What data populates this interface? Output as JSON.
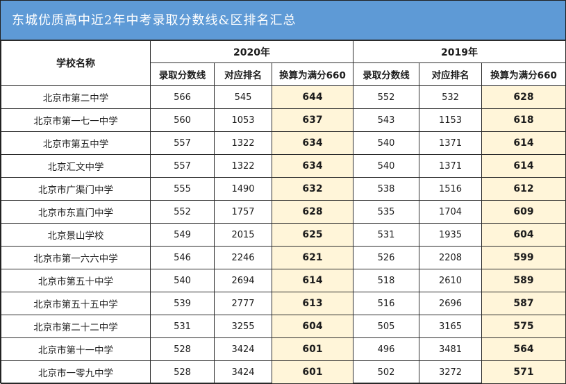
{
  "title": "东城优质高中近2年中考录取分数线&区排名汇总",
  "header": {
    "school_col": "学校名称",
    "year_a": "2020年",
    "year_b": "2019年",
    "sub": [
      "录取分数线",
      "对应排名",
      "换算为满分660",
      "录取分数线",
      "对应排名",
      "换算为满分660"
    ]
  },
  "rows": [
    [
      "北京市第二中学",
      "566",
      "545",
      "644",
      "552",
      "532",
      "628"
    ],
    [
      "北京市第一七一中学",
      "560",
      "1053",
      "637",
      "543",
      "1153",
      "618"
    ],
    [
      "北京市第五中学",
      "557",
      "1322",
      "634",
      "540",
      "1371",
      "614"
    ],
    [
      "北京汇文中学",
      "557",
      "1322",
      "634",
      "540",
      "1371",
      "614"
    ],
    [
      "北京市广渠门中学",
      "555",
      "1490",
      "632",
      "538",
      "1516",
      "612"
    ],
    [
      "北京市东直门中学",
      "552",
      "1757",
      "628",
      "535",
      "1704",
      "609"
    ],
    [
      "北京景山学校",
      "549",
      "2015",
      "625",
      "531",
      "1935",
      "604"
    ],
    [
      "北京市第一六六中学",
      "546",
      "2246",
      "621",
      "526",
      "2208",
      "599"
    ],
    [
      "北京市第五十中学",
      "540",
      "2694",
      "614",
      "518",
      "2610",
      "589"
    ],
    [
      "北京市第五十五中学",
      "539",
      "2777",
      "613",
      "516",
      "2696",
      "587"
    ],
    [
      "北京市第二十二中学",
      "531",
      "3255",
      "604",
      "505",
      "3165",
      "575"
    ],
    [
      "北京市第十一中学",
      "528",
      "3424",
      "601",
      "496",
      "3481",
      "564"
    ],
    [
      "北京市一零九中学",
      "528",
      "3424",
      "601",
      "502",
      "3272",
      "571"
    ]
  ],
  "colors": {
    "banner": "#5e9ad6",
    "highlight": "#fff5d9"
  }
}
